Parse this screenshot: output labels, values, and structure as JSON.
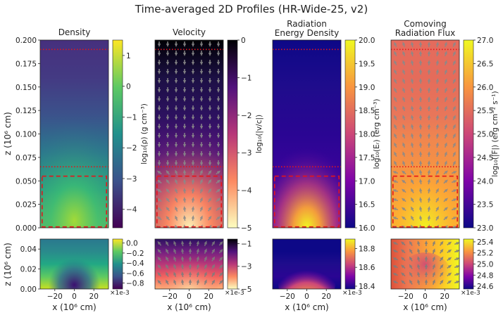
{
  "chart_data": {
    "type": "heatmap",
    "title": "Time-averaged 2D Profiles (HR-Wide-25, v2)",
    "panels": [
      {
        "title": [
          "Density"
        ],
        "cbar_label": "log₁₀(ρ) (g cm⁻³)",
        "colormap": "viridis",
        "top": {
          "clim": [
            -4.6,
            1.5
          ],
          "ticks": [
            "1",
            "0",
            "−1",
            "−2",
            "−3",
            "−4"
          ],
          "tick_values": [
            1,
            0,
            -1,
            -2,
            -3,
            -4
          ]
        },
        "bottom": {
          "clim": [
            -0.92,
            0.08
          ],
          "ticks": [
            "0.0",
            "−0.2",
            "−0.4",
            "−0.6",
            "−0.8"
          ],
          "tick_values": [
            0.0,
            -0.2,
            -0.4,
            -0.6,
            -0.8
          ]
        }
      },
      {
        "title": [
          "Velocity"
        ],
        "cbar_label": "log₁₀(|v/c|)",
        "colormap": "magma",
        "top": {
          "clim": [
            -5,
            0
          ],
          "ticks": [
            "0",
            "−1",
            "−2",
            "−3",
            "−4",
            "−5"
          ],
          "tick_values": [
            0,
            -1,
            -2,
            -3,
            -4,
            -5
          ]
        },
        "bottom": {
          "clim": [
            -5,
            -0.6
          ],
          "ticks": [
            "−1",
            "−3",
            "−5"
          ],
          "tick_values": [
            -1,
            -3,
            -5
          ]
        }
      },
      {
        "title": [
          "Radiation",
          "Energy Density"
        ],
        "cbar_label": "log₁₀(Eᵣ) (erg cm⁻³)",
        "colormap": "plasma",
        "top": {
          "clim": [
            16.0,
            20.0
          ],
          "ticks": [
            "20.0",
            "19.5",
            "19.0",
            "18.5",
            "18.0",
            "17.5",
            "17.0",
            "16.5",
            "16.0"
          ],
          "tick_values": [
            20.0,
            19.5,
            19.0,
            18.5,
            18.0,
            17.5,
            17.0,
            16.5,
            16.0
          ]
        },
        "bottom": {
          "clim": [
            18.37,
            18.9
          ],
          "ticks": [
            "18.8",
            "18.6",
            "18.4"
          ],
          "tick_values": [
            18.8,
            18.6,
            18.4
          ]
        }
      },
      {
        "title": [
          "Comoving",
          "Radiation Flux"
        ],
        "cbar_label": "log₁₀(|F|) (erg cm⁻² s⁻¹)",
        "colormap": "plasma",
        "top": {
          "clim": [
            23.0,
            27.0
          ],
          "ticks": [
            "27.0",
            "26.5",
            "26.0",
            "25.5",
            "25.0",
            "24.5",
            "24.0",
            "23.5",
            "23.0"
          ],
          "tick_values": [
            27.0,
            26.5,
            26.0,
            25.5,
            25.0,
            24.5,
            24.0,
            23.5,
            23.0
          ]
        },
        "bottom": {
          "clim": [
            24.55,
            25.45
          ],
          "ticks": [
            "25.4",
            "25.2",
            "25.0",
            "24.8",
            "24.6"
          ],
          "tick_values": [
            25.4,
            25.2,
            25.0,
            24.8,
            24.6
          ]
        }
      }
    ],
    "top_ylabel": "z (10⁶ cm)",
    "top_ylim": [
      0,
      0.2
    ],
    "top_yticks": [
      "0.200",
      "0.175",
      "0.150",
      "0.125",
      "0.100",
      "0.075",
      "0.050",
      "0.025",
      "0.000"
    ],
    "top_ytick_values": [
      0.2,
      0.175,
      0.15,
      0.125,
      0.1,
      0.075,
      0.05,
      0.025,
      0.0
    ],
    "bottom_ylabel": "z (10⁶ cm)",
    "bottom_ylim": [
      0,
      0.05
    ],
    "bottom_yticks": [
      "0.04",
      "0.02",
      "0.00"
    ],
    "bottom_ytick_values": [
      0.04,
      0.02,
      0.0
    ],
    "xlabel": "x (10⁶ cm)",
    "xlim": [
      -35,
      35
    ],
    "xticks": [
      "−20",
      "0",
      "20"
    ],
    "xtick_values": [
      -20,
      0,
      20
    ],
    "x_scale_note": "×1e-3",
    "dotted_lines_z": [
      0.19,
      0.065
    ],
    "zoom_box": {
      "x": [
        -33,
        33
      ],
      "z": [
        0.001,
        0.055
      ]
    }
  }
}
